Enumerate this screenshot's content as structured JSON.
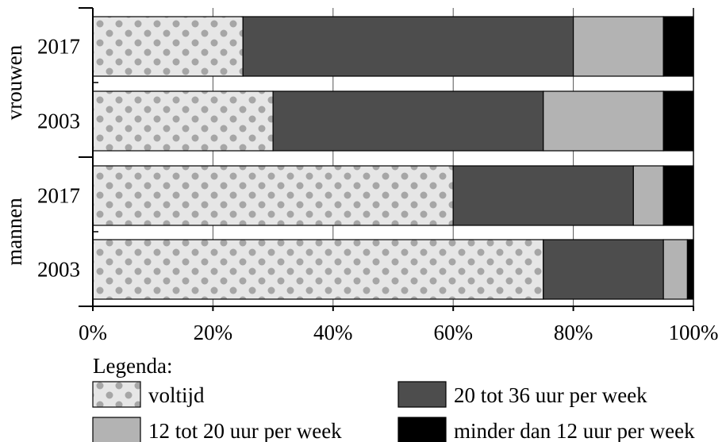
{
  "chart_data": {
    "type": "bar",
    "orientation": "horizontal",
    "stacked": true,
    "groups": [
      {
        "label": "vrouwen",
        "categories": [
          "2017",
          "2003"
        ]
      },
      {
        "label": "mannen",
        "categories": [
          "2017",
          "2003"
        ]
      }
    ],
    "categories": [
      "vrouwen 2017",
      "vrouwen 2003",
      "mannen 2017",
      "mannen 2003"
    ],
    "series": [
      {
        "name": "voltijd",
        "values": [
          25,
          30,
          60,
          75
        ],
        "pattern": "dots",
        "color": "#e6e6e6",
        "dot_color": "#a6a6a6"
      },
      {
        "name": "20 tot 36 uur per week",
        "values": [
          55,
          45,
          30,
          20
        ],
        "pattern": "solid",
        "color": "#4d4d4d"
      },
      {
        "name": "12 tot 20 uur per week",
        "values": [
          15,
          20,
          5,
          4
        ],
        "pattern": "solid",
        "color": "#b3b3b3"
      },
      {
        "name": "minder dan 12 uur per week",
        "values": [
          5,
          5,
          5,
          1
        ],
        "pattern": "solid",
        "color": "#000000"
      }
    ],
    "xlim": [
      0,
      100
    ],
    "x_ticks": [
      "0%",
      "20%",
      "40%",
      "60%",
      "80%",
      "100%"
    ],
    "grid": true,
    "legend_title": "Legenda:",
    "legend_position": "bottom"
  }
}
